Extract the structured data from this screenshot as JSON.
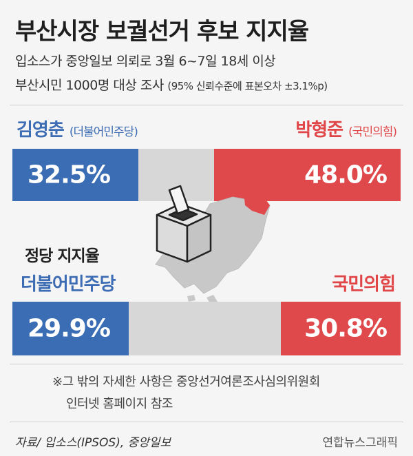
{
  "title": "부산시장 보궐선거 후보 지지율",
  "subtitle_line1": "입소스가 중앙일보 의뢰로 3월 6~7일 18세 이상",
  "subtitle_line2": "부산시민 1000명 대상 조사",
  "subtitle_line2_note": "(95% 신뢰수준에 표본오차 ±3.1%p)",
  "colors": {
    "blue": "#3b6db4",
    "red": "#e0494c",
    "gray": "#d7d7d7"
  },
  "candidates": {
    "left": {
      "name": "김영춘",
      "party": "(더불어민주당)"
    },
    "right": {
      "name": "박형준",
      "party": "(국민의힘)"
    }
  },
  "party_section": {
    "heading": "정당 지지율",
    "left_name": "더불어민주당",
    "right_name": "국민의힘"
  },
  "chart_data": [
    {
      "type": "bar",
      "categories": [
        "김영춘 (더불어민주당)",
        "박형준 (국민의힘)"
      ],
      "values": [
        32.5,
        48.0
      ],
      "labels": [
        "32.5%",
        "48.0%"
      ],
      "ylim": [
        0,
        100
      ]
    },
    {
      "type": "bar",
      "categories": [
        "더불어민주당",
        "국민의힘"
      ],
      "values": [
        29.9,
        30.8
      ],
      "labels": [
        "29.9%",
        "30.8%"
      ],
      "ylim": [
        0,
        100
      ]
    }
  ],
  "note_line1": "※그 밖의 자세한 사항은 중앙선거여론조사심의위원회",
  "note_line2": "인터넷 홈페이지 참조",
  "source": "자료/ 입소스(IPSOS), 중앙일보",
  "credit": "연합뉴스그래픽",
  "icons": [
    "ballot-box-icon",
    "busan-map-icon"
  ]
}
